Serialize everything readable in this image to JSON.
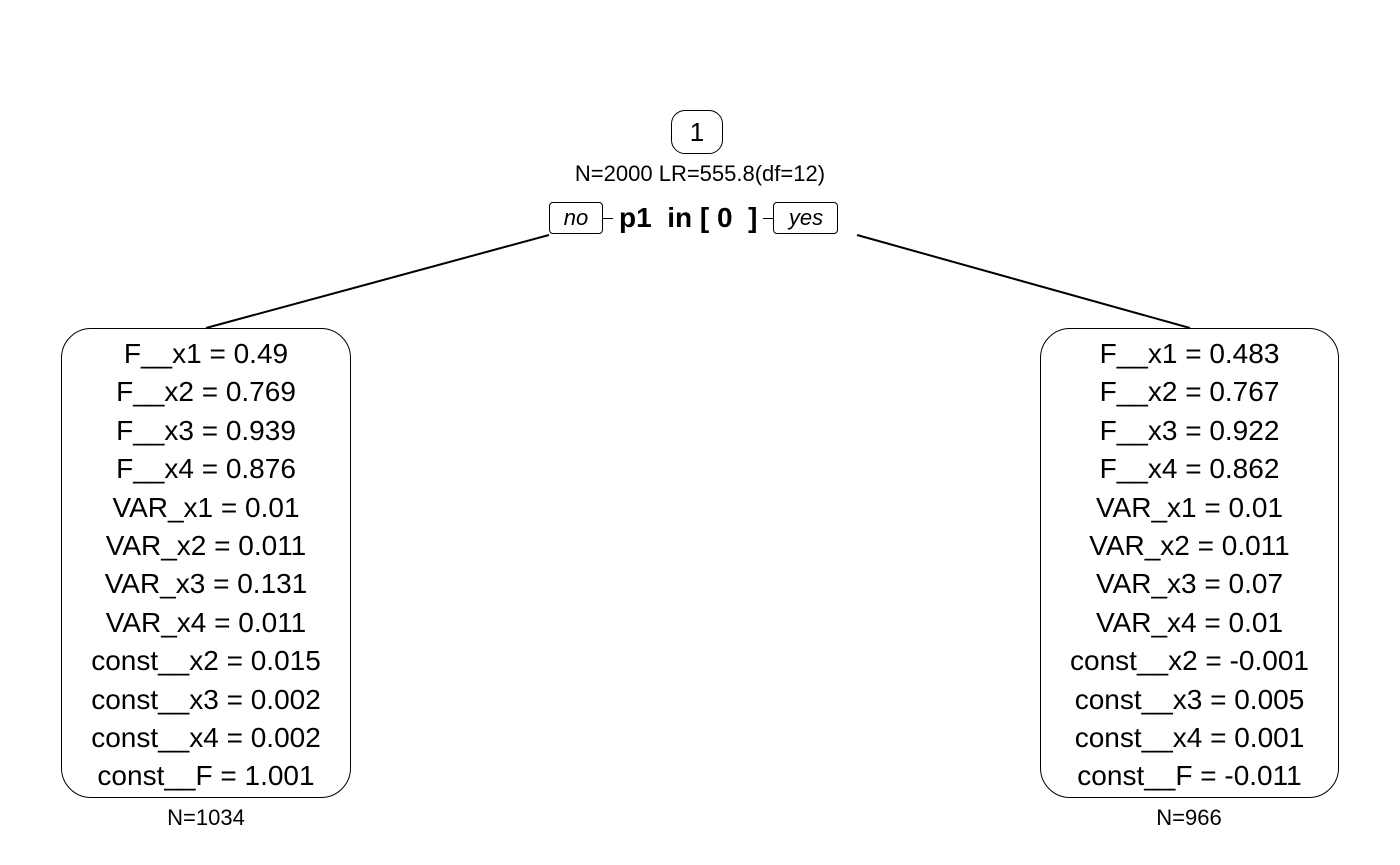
{
  "root": {
    "id": "1",
    "stats": "N=2000 LR=555.8(df=12)",
    "split_label": "p1  in [ 0  ]",
    "no_label": "no",
    "yes_label": "yes"
  },
  "leaves": {
    "left": {
      "lines": [
        "F__x1 = 0.49",
        "F__x2 = 0.769",
        "F__x3 = 0.939",
        "F__x4 = 0.876",
        "VAR_x1 = 0.01",
        "VAR_x2 = 0.011",
        "VAR_x3 = 0.131",
        "VAR_x4 = 0.011",
        "const__x2 = 0.015",
        "const__x3 = 0.002",
        "const__x4 = 0.002",
        "const__F = 1.001"
      ],
      "n": "N=1034"
    },
    "right": {
      "lines": [
        "F__x1 = 0.483",
        "F__x2 = 0.767",
        "F__x3 = 0.922",
        "F__x4 = 0.862",
        "VAR_x1 = 0.01",
        "VAR_x2 = 0.011",
        "VAR_x3 = 0.07",
        "VAR_x4 = 0.01",
        "const__x2 = -0.001",
        "const__x3 = 0.005",
        "const__x4 = 0.001",
        "const__F = -0.011"
      ],
      "n": "N=966"
    }
  }
}
